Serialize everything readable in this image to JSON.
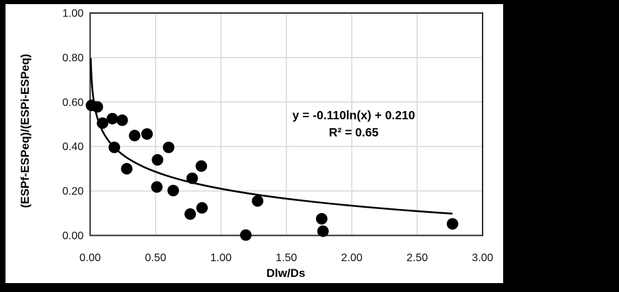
{
  "chart_data": {
    "type": "scatter",
    "title": "",
    "xlabel": "Dlw/Ds",
    "ylabel": "(ESPf-ESPeq)/(ESPi-ESPeq)",
    "xlim": [
      0.0,
      3.0
    ],
    "ylim": [
      0.0,
      1.0
    ],
    "grid": true,
    "legend": "none",
    "x_ticks": [
      0.0,
      0.5,
      1.0,
      1.5,
      2.0,
      2.5,
      3.0
    ],
    "x_tick_labels": [
      "0.00",
      "0.50",
      "1.00",
      "1.50",
      "2.00",
      "2.50",
      "3.00"
    ],
    "y_ticks": [
      0.0,
      0.2,
      0.4,
      0.6,
      0.8,
      1.0
    ],
    "y_tick_labels": [
      "0.00",
      "0.20",
      "0.40",
      "0.60",
      "0.80",
      "1.00"
    ],
    "points": [
      [
        0.01,
        0.585
      ],
      [
        0.055,
        0.578
      ],
      [
        0.095,
        0.505
      ],
      [
        0.17,
        0.525
      ],
      [
        0.245,
        0.518
      ],
      [
        0.185,
        0.396
      ],
      [
        0.34,
        0.449
      ],
      [
        0.435,
        0.456
      ],
      [
        0.28,
        0.3
      ],
      [
        0.515,
        0.34
      ],
      [
        0.6,
        0.396
      ],
      [
        0.51,
        0.218
      ],
      [
        0.635,
        0.202
      ],
      [
        0.78,
        0.257
      ],
      [
        0.85,
        0.312
      ],
      [
        0.765,
        0.096
      ],
      [
        0.855,
        0.124
      ],
      [
        1.19,
        0.002
      ],
      [
        1.28,
        0.155
      ],
      [
        1.77,
        0.075
      ],
      [
        1.78,
        0.019
      ],
      [
        2.77,
        0.052
      ]
    ],
    "trendline": {
      "type": "logarithmic",
      "a": -0.11,
      "b": 0.21,
      "x_start": 0.0048,
      "x_end": 2.77,
      "equation_label": "y = -0.110ln(x) + 0.210",
      "r2_label": "R² = 0.65"
    },
    "colors": {
      "point": "#000000",
      "trendline": "#000000",
      "grid": "#d9d9d9",
      "plot_border": "#2b2b2b",
      "panel_background": "#ffffff",
      "page_background": "#000000"
    }
  }
}
